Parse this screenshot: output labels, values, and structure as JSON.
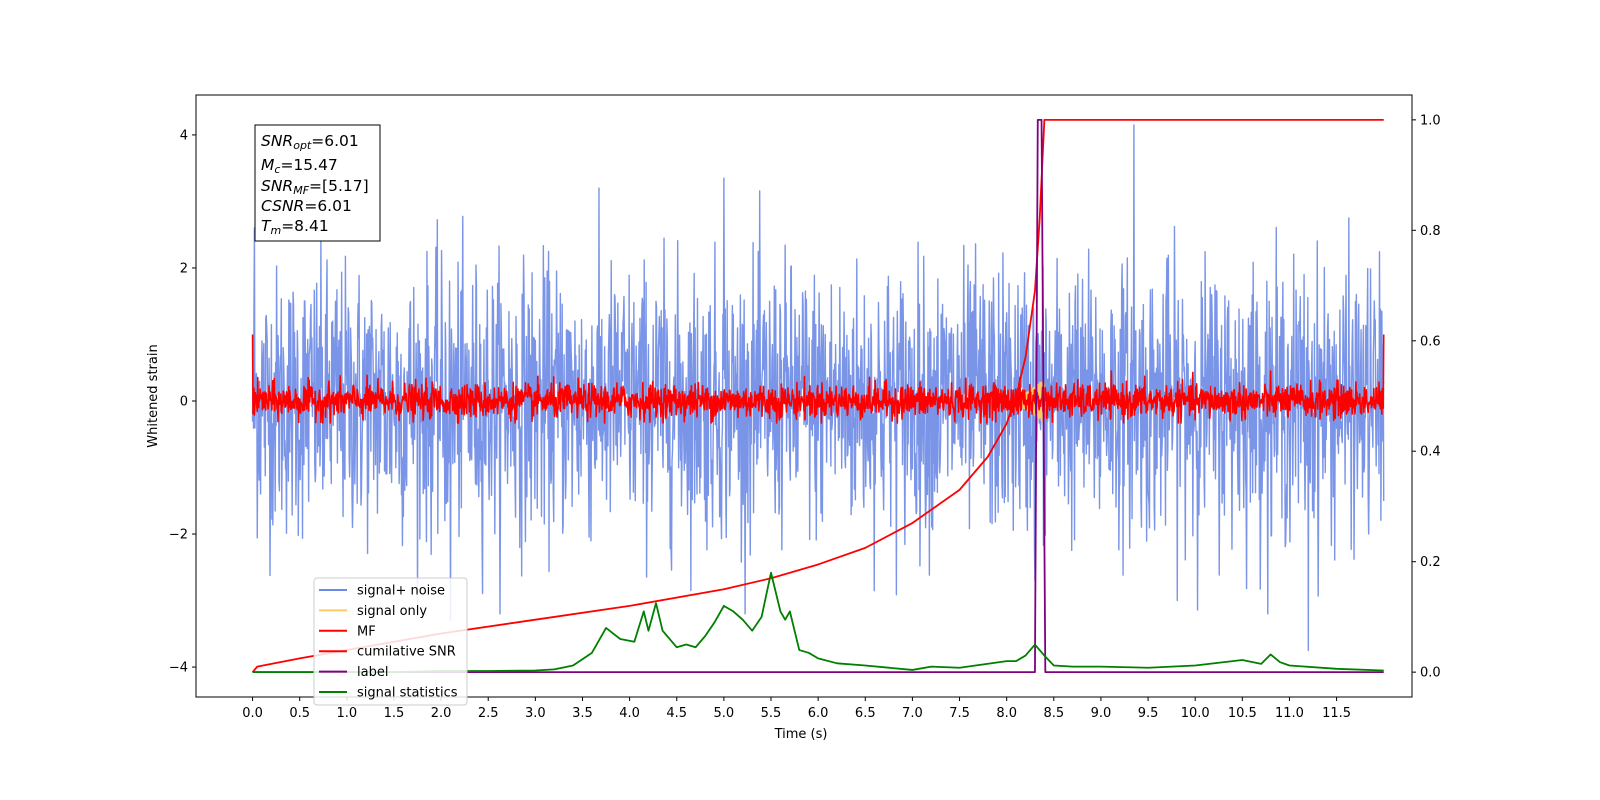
{
  "chart_data": {
    "type": "line",
    "title": "",
    "xlabel": "Time (s)",
    "ylabel": "Whitened strain",
    "y2label": "",
    "xlim": [
      -0.6,
      12.3
    ],
    "ylim": [
      -4.45,
      4.6
    ],
    "y2lim": [
      -0.045,
      1.045
    ],
    "x_ticks": [
      0.0,
      0.5,
      1.0,
      1.5,
      2.0,
      2.5,
      3.0,
      3.5,
      4.0,
      4.5,
      5.0,
      5.5,
      6.0,
      6.5,
      7.0,
      7.5,
      8.0,
      8.5,
      9.0,
      9.5,
      10.0,
      10.5,
      11.0,
      11.5
    ],
    "x_tick_labels": [
      "0.0",
      "0.5",
      "1.0",
      "1.5",
      "2.0",
      "2.5",
      "3.0",
      "3.5",
      "4.0",
      "4.5",
      "5.0",
      "5.5",
      "6.0",
      "6.5",
      "7.0",
      "7.5",
      "8.0",
      "8.5",
      "9.0",
      "9.5",
      "10.0",
      "10.5",
      "11.0",
      "11.5"
    ],
    "y_ticks": [
      -4,
      -2,
      0,
      2,
      4
    ],
    "y_tick_labels": [
      "−4",
      "−2",
      "0",
      "2",
      "4"
    ],
    "y2_ticks": [
      0.0,
      0.2,
      0.4,
      0.6,
      0.8,
      1.0
    ],
    "y2_tick_labels": [
      "0.0",
      "0.2",
      "0.4",
      "0.6",
      "0.8",
      "1.0"
    ],
    "grid": false,
    "legend_position": "lower-left",
    "series": [
      {
        "name": "signal+ noise",
        "axis": "left",
        "color": "#6b8ae6",
        "kind": "noise",
        "x_range": [
          0,
          12
        ],
        "amplitude": 1.0,
        "spikes": [
          [
            0.02,
            2.6
          ],
          [
            9.35,
            4.15
          ],
          [
            11.2,
            -3.75
          ],
          [
            5.0,
            3.35
          ],
          [
            2.1,
            -3.3
          ],
          [
            8.3,
            -2.7
          ]
        ]
      },
      {
        "name": "signal only",
        "axis": "left",
        "color": "#ffc966",
        "kind": "chirp",
        "x_range": [
          7.9,
          8.41
        ],
        "amplitude_max": 0.35
      },
      {
        "name": "MF",
        "axis": "left",
        "color": "#ff0000",
        "kind": "noise",
        "x_range": [
          0,
          12
        ],
        "amplitude": 0.13,
        "endpoints": [
          1.0,
          1.0
        ]
      },
      {
        "name": "cumilative SNR",
        "axis": "right",
        "color": "#ff0000",
        "kind": "curve",
        "x": [
          0.0,
          0.05,
          0.5,
          1.0,
          2.0,
          3.0,
          4.0,
          5.0,
          5.5,
          6.0,
          6.5,
          7.0,
          7.5,
          7.8,
          8.0,
          8.1,
          8.2,
          8.3,
          8.35,
          8.4,
          8.45,
          12.0
        ],
        "y": [
          0.0,
          0.01,
          0.025,
          0.04,
          0.07,
          0.095,
          0.12,
          0.15,
          0.17,
          0.195,
          0.225,
          0.27,
          0.33,
          0.39,
          0.45,
          0.5,
          0.57,
          0.69,
          0.82,
          1.0,
          1.0,
          1.0
        ]
      },
      {
        "name": "label",
        "axis": "right",
        "color": "#800080",
        "kind": "steps",
        "x": [
          0.0,
          8.3,
          8.33,
          8.37,
          8.41,
          12.0
        ],
        "y": [
          0.0,
          0.0,
          1.0,
          1.0,
          0.0,
          0.0
        ]
      },
      {
        "name": "signal statistics",
        "axis": "right",
        "color": "#008000",
        "kind": "curve",
        "x": [
          0.0,
          0.5,
          1.0,
          1.5,
          2.0,
          2.5,
          3.0,
          3.2,
          3.4,
          3.6,
          3.75,
          3.9,
          4.05,
          4.15,
          4.2,
          4.28,
          4.35,
          4.5,
          4.6,
          4.7,
          4.8,
          4.9,
          5.0,
          5.1,
          5.2,
          5.3,
          5.4,
          5.5,
          5.6,
          5.65,
          5.7,
          5.8,
          5.9,
          6.0,
          6.2,
          6.5,
          7.0,
          7.2,
          7.5,
          8.0,
          8.1,
          8.2,
          8.3,
          8.4,
          8.5,
          8.7,
          9.0,
          9.5,
          10.0,
          10.5,
          10.7,
          10.8,
          10.9,
          11.0,
          11.5,
          12.0
        ],
        "y": [
          0.0,
          0.0,
          0.0,
          0.0,
          0.002,
          0.002,
          0.003,
          0.005,
          0.012,
          0.035,
          0.08,
          0.06,
          0.055,
          0.11,
          0.075,
          0.125,
          0.075,
          0.045,
          0.05,
          0.045,
          0.065,
          0.09,
          0.12,
          0.11,
          0.095,
          0.075,
          0.1,
          0.18,
          0.11,
          0.095,
          0.11,
          0.04,
          0.035,
          0.025,
          0.016,
          0.012,
          0.004,
          0.01,
          0.008,
          0.02,
          0.02,
          0.03,
          0.05,
          0.03,
          0.012,
          0.01,
          0.01,
          0.008,
          0.012,
          0.022,
          0.015,
          0.032,
          0.018,
          0.012,
          0.006,
          0.003
        ]
      }
    ]
  },
  "info_box": {
    "snr_opt": {
      "sym": "SNR",
      "sub": "opt",
      "val": "=6.01"
    },
    "mc": {
      "sym": "M",
      "sub": "c",
      "val": "=15.47"
    },
    "snr_mf": {
      "sym": "SNR",
      "sub": "MF",
      "val": "=[5.17]"
    },
    "csnr": {
      "sym": "CSNR",
      "sub": "",
      "val": "=6.01"
    },
    "tm": {
      "sym": "T",
      "sub": "m",
      "val": "=8.41"
    }
  }
}
